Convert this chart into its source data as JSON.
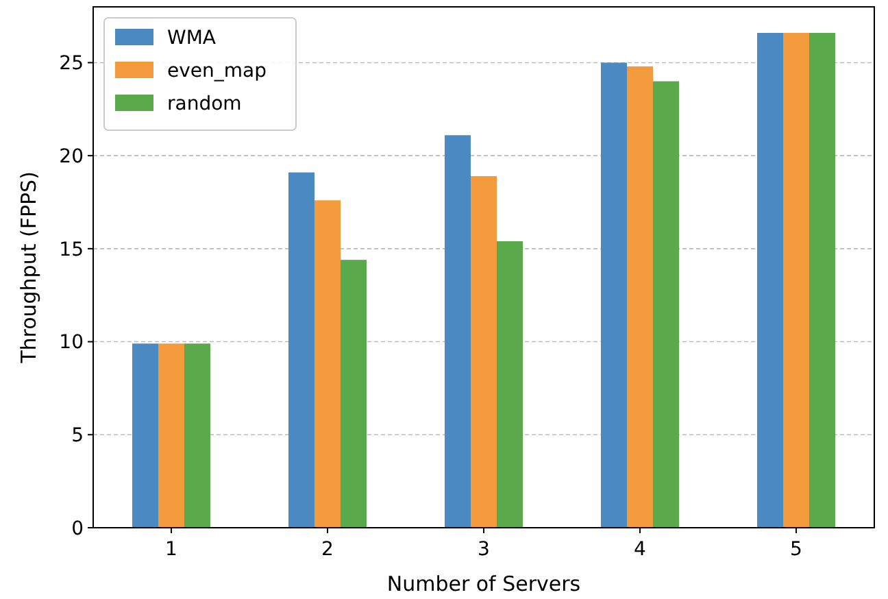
{
  "chart_data": {
    "type": "bar",
    "xlabel": "Number of Servers",
    "ylabel": "Throughput (FPPS)",
    "categories": [
      "1",
      "2",
      "3",
      "4",
      "5"
    ],
    "series": [
      {
        "name": "WMA",
        "color": "#4a89c1",
        "values": [
          9.9,
          19.1,
          21.1,
          25.0,
          26.6
        ]
      },
      {
        "name": "even_map",
        "color": "#f39a3c",
        "values": [
          9.9,
          17.6,
          18.9,
          24.8,
          26.6
        ]
      },
      {
        "name": "random",
        "color": "#5aaa4c",
        "values": [
          9.9,
          14.4,
          15.4,
          24.0,
          26.6
        ]
      }
    ],
    "ylim": [
      0,
      28
    ],
    "yticks": [
      0,
      5,
      10,
      15,
      20,
      25
    ],
    "grid": "y",
    "legend": "top left"
  }
}
